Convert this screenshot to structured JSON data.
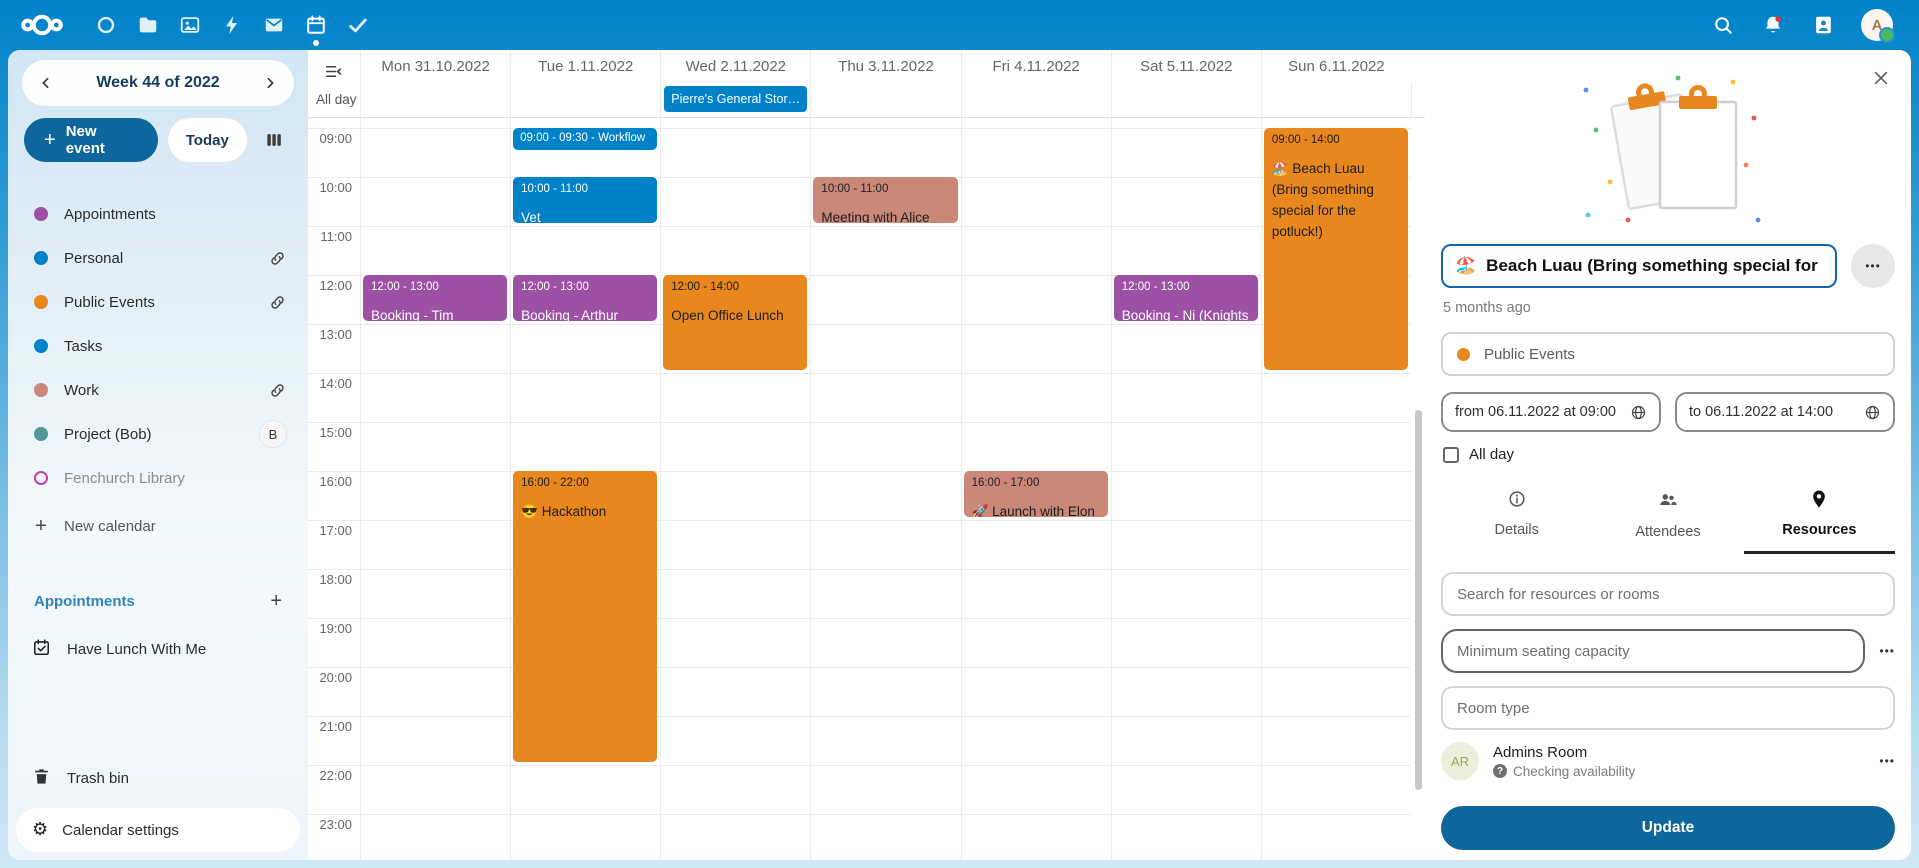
{
  "topbar": {
    "apps": [
      {
        "name": "dashboard"
      },
      {
        "name": "files"
      },
      {
        "name": "photos"
      },
      {
        "name": "activity"
      },
      {
        "name": "mail"
      },
      {
        "name": "calendar",
        "active": true
      },
      {
        "name": "tasks"
      }
    ],
    "avatar_letter": "A"
  },
  "sidebar": {
    "week_title": "Week 44 of 2022",
    "new_event_label": "New event",
    "today_label": "Today",
    "calendars": [
      {
        "label": "Appointments",
        "color": "#9c51a5",
        "style": "dot"
      },
      {
        "label": "Personal",
        "color": "#0082c9",
        "style": "dot",
        "shared": true
      },
      {
        "label": "Public Events",
        "color": "#e8871e",
        "style": "dot",
        "shared": true
      },
      {
        "label": "Tasks",
        "color": "#0082c9",
        "style": "dot"
      },
      {
        "label": "Work",
        "color": "#ca8878",
        "style": "dot",
        "shared": true
      },
      {
        "label": "Project (Bob)",
        "color": "#539898",
        "style": "dot",
        "badge": "B"
      },
      {
        "label": "Fenchurch Library",
        "color": "#c33fa9",
        "style": "ring",
        "muted": true
      }
    ],
    "new_calendar_label": "New calendar",
    "appointments_header": "Appointments",
    "appointment_items": [
      "Have Lunch With Me"
    ],
    "trash_label": "Trash bin",
    "settings_label": "Calendar settings"
  },
  "calendar": {
    "days": [
      "Mon 31.10.2022",
      "Tue 1.11.2022",
      "Wed 2.11.2022",
      "Thu 3.11.2022",
      "Fri 4.11.2022",
      "Sat 5.11.2022",
      "Sun 6.11.2022"
    ],
    "allday_label": "All day",
    "hours": [
      "09:00",
      "10:00",
      "11:00",
      "12:00",
      "13:00",
      "14:00",
      "15:00",
      "16:00",
      "17:00",
      "18:00",
      "19:00",
      "20:00",
      "21:00",
      "22:00",
      "23:00"
    ],
    "allday_events": [
      {
        "day": 2,
        "label": "Pierre's General Stor…",
        "color": "blue"
      }
    ],
    "events": [
      {
        "day": 0,
        "start": 12,
        "end": 13,
        "time": "12:00 - 13:00",
        "title": "Booking - Tim (Wizard)",
        "color": "purple"
      },
      {
        "day": 1,
        "start": 9,
        "end": 9.5,
        "label": "09:00 - 09:30 - Workflow",
        "color": "blue",
        "compact": true
      },
      {
        "day": 1,
        "start": 10,
        "end": 11,
        "time": "10:00 - 11:00",
        "title": "Vet",
        "color": "blue"
      },
      {
        "day": 1,
        "start": 12,
        "end": 13,
        "time": "12:00 - 13:00",
        "title": "Booking - Arthur Dent",
        "color": "purple"
      },
      {
        "day": 1,
        "start": 16,
        "end": 22,
        "time": "16:00 - 22:00",
        "title": "😎 Hackathon",
        "color": "orange"
      },
      {
        "day": 2,
        "start": 12,
        "end": 14,
        "time": "12:00 - 14:00",
        "title": "Open Office Lunch",
        "color": "orange"
      },
      {
        "day": 3,
        "start": 10,
        "end": 11,
        "time": "10:00 - 11:00",
        "title": "Meeting with Alice",
        "color": "salmon"
      },
      {
        "day": 4,
        "start": 16,
        "end": 17,
        "time": "16:00 - 17:00",
        "title": "🚀 Launch with Elon",
        "color": "salmon"
      },
      {
        "day": 5,
        "start": 12,
        "end": 13,
        "time": "12:00 - 13:00",
        "title": "Booking - Ni (Knights",
        "color": "purple"
      },
      {
        "day": 6,
        "start": 9,
        "end": 14,
        "time": "09:00 - 14:00",
        "title": "🏖️ Beach Luau (Bring something special for the potluck!)",
        "color": "orange"
      }
    ]
  },
  "panel": {
    "title_emoji": "🏖️",
    "title_text": "Beach Luau (Bring something special for",
    "more_label": "•••",
    "modified": "5 months ago",
    "calendar_name": "Public Events",
    "calendar_color": "#e8871e",
    "from_label": "from 06.11.2022 at 09:00",
    "to_label": "to 06.11.2022 at 14:00",
    "allday_label": "All day",
    "tabs": [
      {
        "label": "Details",
        "icon": "info"
      },
      {
        "label": "Attendees",
        "icon": "people"
      },
      {
        "label": "Resources",
        "icon": "pin",
        "active": true
      }
    ],
    "search_placeholder": "Search for resources or rooms",
    "seating_placeholder": "Minimum seating capacity",
    "room_type_placeholder": "Room type",
    "room": {
      "initials": "AR",
      "name": "Admins Room",
      "status": "Checking availability",
      "question_mark": "?"
    },
    "update_label": "Update"
  },
  "colors": {
    "event_blue": "#0082c9",
    "event_purple": "#9c51a5",
    "event_orange": "#e8871e",
    "event_salmon": "#ca8878",
    "primary": "#0082c9",
    "primary_dark": "#0d669c"
  }
}
